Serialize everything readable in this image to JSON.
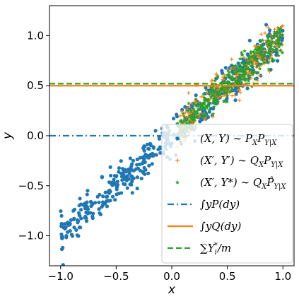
{
  "chart_data": {
    "type": "scatter",
    "xlabel": "x",
    "ylabel": "y",
    "xlim": [
      -1.1,
      1.1
    ],
    "ylim": [
      -1.3,
      1.3
    ],
    "xticks": [
      -1.0,
      -0.5,
      0.0,
      0.5,
      1.0
    ],
    "xtick_labels": [
      "−1.0",
      "−0.5",
      "0.0",
      "0.5",
      "1.0"
    ],
    "yticks": [
      -1.0,
      -0.5,
      0.0,
      0.5,
      1.0
    ],
    "ytick_labels": [
      "−1.0",
      "−0.5",
      "0.0",
      "0.5",
      "1.0"
    ],
    "grid": false,
    "legend_position": "lower-right",
    "series": [
      {
        "name": "(X, Y) ~ P_X P_{Y|X}",
        "legend_text": "(X, Y) ∼ P",
        "legend_sub": "X",
        "legend_tail": "P",
        "legend_sub2": "Y|X",
        "marker": "dot",
        "color": "#1f77b4",
        "x_range": [
          -1.0,
          1.0
        ],
        "relation": "y ≈ x",
        "noise_sd": 0.09,
        "point_count": 500
      },
      {
        "name": "(X', Y') ~ Q_X P_{Y|X}",
        "legend_text": "(X′, Y′) ∼ Q",
        "legend_sub": "X",
        "legend_tail": "P",
        "legend_sub2": "Y|X",
        "marker": "plus",
        "color": "#ff7f0e",
        "x_range": [
          0.05,
          1.0
        ],
        "relation": "y ≈ x",
        "noise_sd": 0.09,
        "point_count": 260
      },
      {
        "name": "(X', Y*) ~ Q_X P̂_{Y|X}",
        "legend_text": "(X′, Y*) ∼ Q",
        "legend_sub": "X",
        "legend_tail": "P̂",
        "legend_sub2": "Y|X",
        "marker": "star",
        "color": "#2ca02c",
        "x_range": [
          0.05,
          1.0
        ],
        "relation": "y ≈ x",
        "noise_sd": 0.08,
        "point_count": 360
      }
    ],
    "lines": [
      {
        "name": "∫yP(dy)",
        "y": 0.0,
        "style": "dashdot",
        "color": "#1f77b4"
      },
      {
        "name": "∫yQ(dy)",
        "y": 0.5,
        "style": "solid",
        "color": "#ff7f0e"
      },
      {
        "name": "∑Y_i*/m",
        "y": 0.52,
        "style": "dashed",
        "color": "#2ca02c"
      }
    ],
    "legend_entries": [
      {
        "type": "dot",
        "color": "#1f77b4",
        "text": "(X, Y) ∼ P",
        "sub": "X",
        "tail": "P",
        "sub2": "Y|X"
      },
      {
        "type": "plus",
        "color": "#ff7f0e",
        "text": "(X′, Y′) ∼ Q",
        "sub": "X",
        "tail": "P",
        "sub2": "Y|X"
      },
      {
        "type": "star",
        "color": "#2ca02c",
        "text": "(X′, Y*) ∼ Q",
        "sub": "X",
        "tail": "P̂",
        "sub2": "Y|X"
      },
      {
        "type": "dashdot",
        "color": "#1f77b4",
        "text": "∫yP(dy)"
      },
      {
        "type": "solid",
        "color": "#ff7f0e",
        "text": "∫yQ(dy)"
      },
      {
        "type": "dashed",
        "color": "#2ca02c",
        "text": "∑Y",
        "sub": "i",
        "sup": "*",
        "tail": "/m"
      }
    ]
  }
}
